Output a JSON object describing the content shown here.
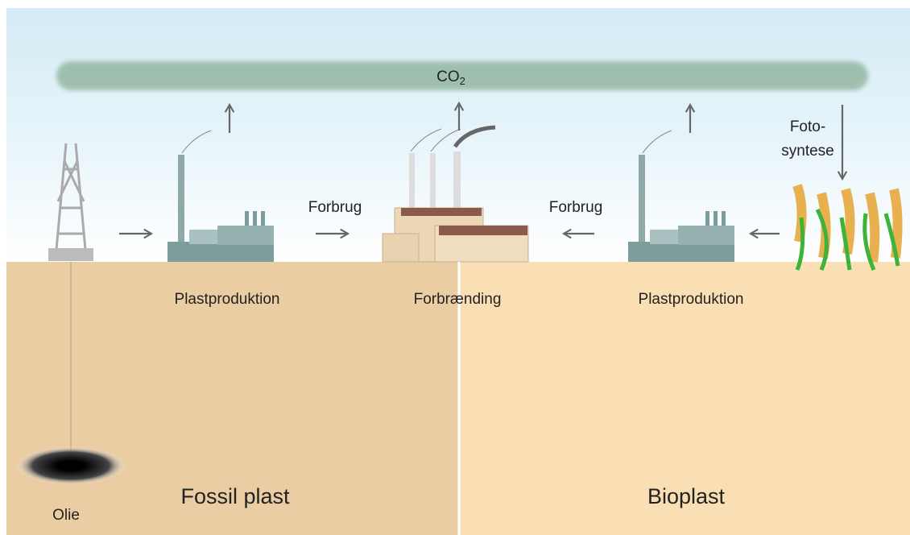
{
  "co2": {
    "base": "CO",
    "sub": "2"
  },
  "photosynthesis": [
    "Foto-",
    "syntese"
  ],
  "consumption": [
    "Forbrug",
    "Forbrug"
  ],
  "plastic_production": [
    "Plastproduktion",
    "Plastproduktion"
  ],
  "incineration": "Forbrænding",
  "oil": "Olie",
  "sections": {
    "fossil": "Fossil plast",
    "bio": "Bioplast"
  }
}
